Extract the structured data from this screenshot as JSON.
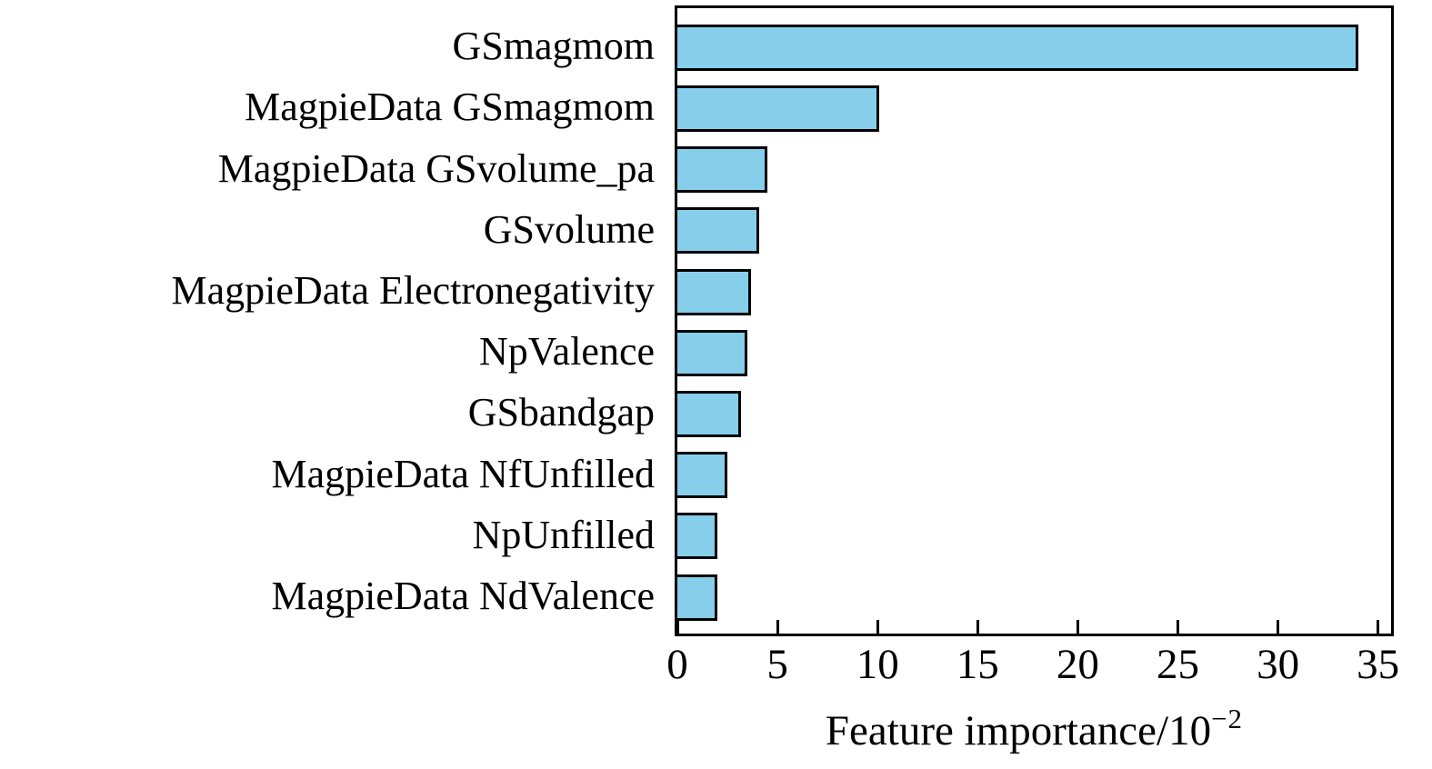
{
  "chart_data": {
    "type": "bar",
    "orientation": "horizontal",
    "title": "",
    "categories": [
      "GSmagmom",
      "MagpieData GSmagmom",
      "MagpieData GSvolume_pa",
      "GSvolume",
      "MagpieData Electronegativity",
      "NpValence",
      "GSbandgap",
      "MagpieData NfUnfilled",
      "NpUnfilled",
      "MagpieData NdValence"
    ],
    "values": [
      34.0,
      10.1,
      4.5,
      4.1,
      3.7,
      3.5,
      3.2,
      2.5,
      2.0,
      2.0
    ],
    "xlabel": "Feature importance/10⁻²",
    "xlabel_base": "Feature importance/10",
    "xlabel_exponent": "−2",
    "x_ticks": [
      0,
      5,
      10,
      15,
      20,
      25,
      30,
      35
    ],
    "x_tick_labels": [
      "0",
      "5",
      "10",
      "15",
      "20",
      "25",
      "30",
      "35"
    ],
    "xlim": [
      0,
      35.65
    ],
    "ylabel": "",
    "grid": false,
    "legend": null,
    "bar_color": "#87CEEB",
    "bar_edge_color": "#000000",
    "axis_color": "#000000",
    "background_color": "#ffffff"
  }
}
